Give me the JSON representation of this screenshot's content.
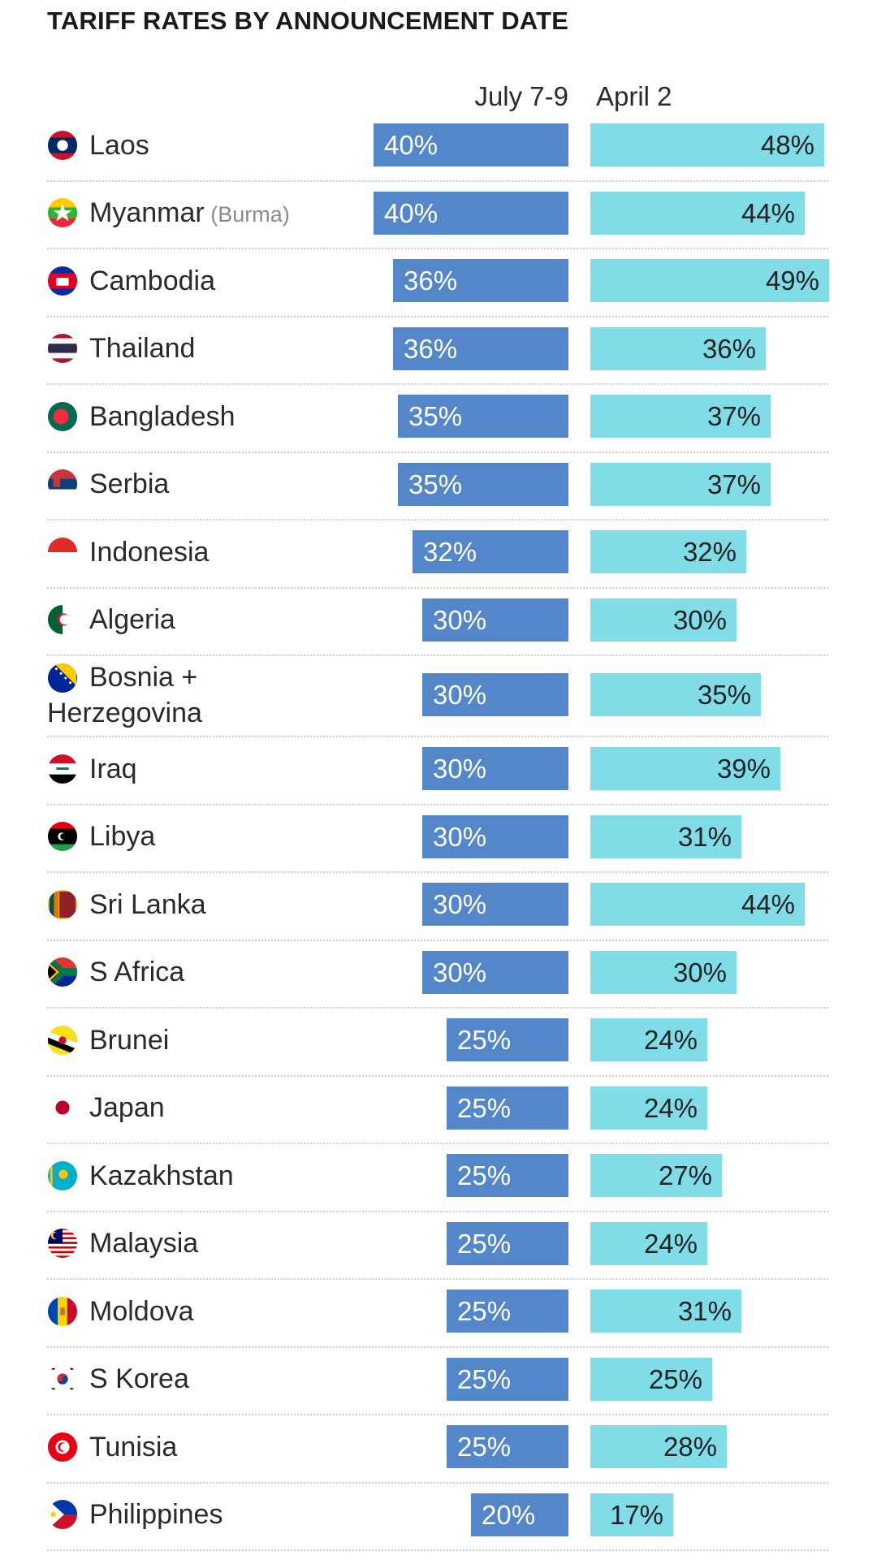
{
  "chart_data": {
    "type": "bar",
    "title": "TARIFF RATES BY ANNOUNCEMENT DATE",
    "series": [
      {
        "name": "July 7-9",
        "color": "#5387c9"
      },
      {
        "name": "April 2",
        "color": "#80dde8"
      }
    ],
    "rows": [
      {
        "country": "Laos",
        "note": "",
        "flag": "laos-flag-icon",
        "july": "40%",
        "april": "48%",
        "july_value": 40,
        "april_value": 48
      },
      {
        "country": "Myanmar",
        "note": "(Burma)",
        "flag": "myanmar-flag-icon",
        "july": "40%",
        "april": "44%",
        "july_value": 40,
        "april_value": 44
      },
      {
        "country": "Cambodia",
        "note": "",
        "flag": "cambodia-flag-icon",
        "july": "36%",
        "april": "49%",
        "july_value": 36,
        "april_value": 49
      },
      {
        "country": "Thailand",
        "note": "",
        "flag": "thailand-flag-icon",
        "july": "36%",
        "april": "36%",
        "july_value": 36,
        "april_value": 36
      },
      {
        "country": "Bangladesh",
        "note": "",
        "flag": "bangladesh-flag-icon",
        "july": "35%",
        "april": "37%",
        "july_value": 35,
        "april_value": 37
      },
      {
        "country": "Serbia",
        "note": "",
        "flag": "serbia-flag-icon",
        "july": "35%",
        "april": "37%",
        "july_value": 35,
        "april_value": 37
      },
      {
        "country": "Indonesia",
        "note": "",
        "flag": "indonesia-flag-icon",
        "july": "32%",
        "april": "32%",
        "july_value": 32,
        "april_value": 32
      },
      {
        "country": "Algeria",
        "note": "",
        "flag": "algeria-flag-icon",
        "july": "30%",
        "april": "30%",
        "july_value": 30,
        "april_value": 30
      },
      {
        "country": "Bosnia + Herzegovina",
        "note": "",
        "flag": "bosnia-flag-icon",
        "july": "30%",
        "april": "35%",
        "july_value": 30,
        "april_value": 35
      },
      {
        "country": "Iraq",
        "note": "",
        "flag": "iraq-flag-icon",
        "july": "30%",
        "april": "39%",
        "july_value": 30,
        "april_value": 39
      },
      {
        "country": "Libya",
        "note": "",
        "flag": "libya-flag-icon",
        "july": "30%",
        "april": "31%",
        "july_value": 30,
        "april_value": 31
      },
      {
        "country": "Sri Lanka",
        "note": "",
        "flag": "sri-lanka-flag-icon",
        "july": "30%",
        "april": "44%",
        "july_value": 30,
        "april_value": 44
      },
      {
        "country": "S Africa",
        "note": "",
        "flag": "south-africa-flag-icon",
        "july": "30%",
        "april": "30%",
        "july_value": 30,
        "april_value": 30
      },
      {
        "country": "Brunei",
        "note": "",
        "flag": "brunei-flag-icon",
        "july": "25%",
        "april": "24%",
        "july_value": 25,
        "april_value": 24
      },
      {
        "country": "Japan",
        "note": "",
        "flag": "japan-flag-icon",
        "july": "25%",
        "april": "24%",
        "july_value": 25,
        "april_value": 24
      },
      {
        "country": "Kazakhstan",
        "note": "",
        "flag": "kazakhstan-flag-icon",
        "july": "25%",
        "april": "27%",
        "july_value": 25,
        "april_value": 27
      },
      {
        "country": "Malaysia",
        "note": "",
        "flag": "malaysia-flag-icon",
        "july": "25%",
        "april": "24%",
        "july_value": 25,
        "april_value": 24
      },
      {
        "country": "Moldova",
        "note": "",
        "flag": "moldova-flag-icon",
        "july": "25%",
        "april": "31%",
        "july_value": 25,
        "april_value": 31
      },
      {
        "country": "S Korea",
        "note": "",
        "flag": "south-korea-flag-icon",
        "july": "25%",
        "april": "25%",
        "july_value": 25,
        "april_value": 25
      },
      {
        "country": "Tunisia",
        "note": "",
        "flag": "tunisia-flag-icon",
        "july": "25%",
        "april": "28%",
        "july_value": 25,
        "april_value": 28
      },
      {
        "country": "Philippines",
        "note": "",
        "flag": "philippines-flag-icon",
        "july": "20%",
        "april": "17%",
        "july_value": 20,
        "april_value": 17
      }
    ]
  }
}
